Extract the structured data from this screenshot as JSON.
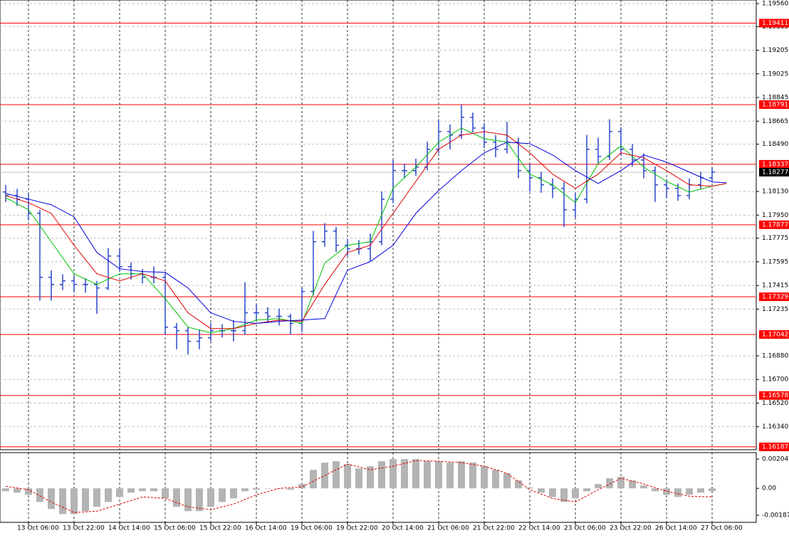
{
  "chart_data": [
    {
      "type": "ohlc",
      "categories": [
        null,
        null,
        "13 Oct 06:00",
        null,
        null,
        null,
        "13 Oct 22:00",
        null,
        null,
        null,
        "14 Oct 14:00",
        null,
        null,
        null,
        "15 Oct 06:00",
        null,
        null,
        null,
        "15 Oct 22:00",
        null,
        null,
        null,
        "16 Oct 14:00",
        null,
        null,
        null,
        "19 Oct 06:00",
        null,
        null,
        null,
        "19 Oct 22:00",
        null,
        null,
        null,
        "20 Oct 14:00",
        null,
        null,
        null,
        "21 Oct 06:00",
        null,
        null,
        null,
        "21 Oct 22:00",
        null,
        null,
        null,
        "22 Oct 14:00",
        null,
        null,
        null,
        "23 Oct 06:00",
        null,
        null,
        null,
        "23 Oct 22:00",
        null,
        null,
        null,
        "26 Oct 14:00",
        null,
        null,
        null,
        "27 Oct 06:00"
      ],
      "open": [
        1.18126,
        1.18099,
        1.18072,
        1.17964,
        1.17477,
        1.17423,
        1.1745,
        1.17423,
        1.17423,
        1.17396,
        1.17639,
        1.17558,
        1.17504,
        1.17477,
        1.17477,
        1.17098,
        1.17071,
        1.1699,
        1.17017,
        1.17071,
        1.17071,
        1.17071,
        1.17207,
        1.17207,
        1.1718,
        1.1718,
        1.17126,
        1.17369,
        1.17748,
        1.17829,
        1.17721,
        1.17694,
        1.17694,
        1.17748,
        1.18072,
        1.18289,
        1.18289,
        1.18316,
        1.18451,
        1.18586,
        1.18559,
        1.18694,
        1.18613,
        1.18505,
        1.18451,
        1.18505,
        1.18289,
        1.18235,
        1.18181,
        1.18154,
        1.17991,
        1.18072,
        1.18451,
        1.18397,
        1.18586,
        1.18451,
        1.1837,
        1.18289,
        1.18181,
        1.18154,
        1.18099,
        1.18181,
        1.18235
      ],
      "high": [
        1.1818,
        1.1815,
        1.1811,
        1.1799,
        1.1753,
        1.175,
        1.1749,
        1.1747,
        1.1745,
        1.177,
        1.1769,
        1.1759,
        1.1754,
        1.1756,
        1.1751,
        1.1713,
        1.171,
        1.1708,
        1.1713,
        1.1712,
        1.1715,
        1.1744,
        1.1727,
        1.1725,
        1.1724,
        1.172,
        1.174,
        1.1783,
        1.1789,
        1.1786,
        1.1777,
        1.1776,
        1.1781,
        1.1813,
        1.1837,
        1.1834,
        1.1838,
        1.1851,
        1.1868,
        1.1864,
        1.1879,
        1.1873,
        1.1865,
        1.1856,
        1.1866,
        1.1854,
        1.1834,
        1.1828,
        1.1823,
        1.182,
        1.1812,
        1.1856,
        1.1854,
        1.1868,
        1.1862,
        1.1849,
        1.1842,
        1.1832,
        1.1822,
        1.1819,
        1.1823,
        1.1828,
        1.1831
      ],
      "low": [
        1.1805,
        1.1802,
        1.1791,
        1.173,
        1.173,
        1.1738,
        1.1737,
        1.1736,
        1.172,
        1.1738,
        1.1752,
        1.1746,
        1.1743,
        1.1743,
        1.1704,
        1.1693,
        1.1689,
        1.1693,
        1.1699,
        1.1702,
        1.1699,
        1.1704,
        1.1715,
        1.1713,
        1.1711,
        1.1704,
        1.1706,
        1.1734,
        1.1771,
        1.1767,
        1.1764,
        1.1765,
        1.176,
        1.1772,
        1.1804,
        1.1823,
        1.1825,
        1.1829,
        1.1842,
        1.1845,
        1.1853,
        1.1858,
        1.1846,
        1.1839,
        1.1842,
        1.1823,
        1.1813,
        1.1812,
        1.1808,
        1.1786,
        1.1793,
        1.1804,
        1.1834,
        1.1837,
        1.184,
        1.1832,
        1.1823,
        1.1805,
        1.1808,
        1.1806,
        1.1807,
        1.1815,
        1.1821
      ],
      "close": [
        1.18099,
        1.18072,
        1.17964,
        1.17477,
        1.17423,
        1.1745,
        1.17423,
        1.17423,
        1.17396,
        1.17639,
        1.17558,
        1.17504,
        1.17477,
        1.17477,
        1.17098,
        1.17071,
        1.1699,
        1.17017,
        1.17071,
        1.17071,
        1.17071,
        1.17207,
        1.17207,
        1.1718,
        1.1718,
        1.17126,
        1.17369,
        1.17748,
        1.17829,
        1.17721,
        1.17694,
        1.17694,
        1.17748,
        1.18072,
        1.18289,
        1.18289,
        1.18316,
        1.18451,
        1.18586,
        1.18559,
        1.18694,
        1.18613,
        1.18505,
        1.18451,
        1.18505,
        1.18289,
        1.18235,
        1.18181,
        1.18154,
        1.17991,
        1.18072,
        1.18451,
        1.18397,
        1.18586,
        1.18451,
        1.1837,
        1.18289,
        1.18181,
        1.18154,
        1.18099,
        1.18181,
        1.18235,
        1.18277
      ],
      "color": "#2a48c8",
      "moving_averages": [
        {
          "color": "#00c000",
          "x": [
            0,
            2,
            4,
            6,
            8,
            10,
            12,
            14,
            16,
            18,
            20,
            22,
            24,
            26,
            28,
            30,
            32,
            34,
            36,
            38,
            40,
            42,
            44,
            46,
            48,
            50,
            52,
            54,
            56,
            58,
            60,
            62,
            63.25
          ],
          "values": [
            1.18083,
            1.17991,
            1.17748,
            1.17504,
            1.17423,
            1.17504,
            1.17504,
            1.17315,
            1.17098,
            1.17055,
            1.17087,
            1.17152,
            1.17163,
            1.17126,
            1.17585,
            1.17721,
            1.17748,
            1.18154,
            1.18316,
            1.18505,
            1.18613,
            1.18532,
            1.18505,
            1.18262,
            1.18181,
            1.18045,
            1.18343,
            1.18478,
            1.18316,
            1.18207,
            1.18126,
            1.1817,
            1.18191
          ]
        },
        {
          "color": "#e00000",
          "x": [
            0,
            2,
            4,
            6,
            8,
            10,
            12,
            14,
            16,
            18,
            20,
            22,
            24,
            26,
            28,
            30,
            32,
            34,
            36,
            38,
            40,
            42,
            44,
            46,
            48,
            50,
            52,
            54,
            56,
            58,
            60,
            62,
            63.25
          ],
          "values": [
            1.18099,
            1.18045,
            1.17964,
            1.17721,
            1.17504,
            1.1745,
            1.17504,
            1.1745,
            1.17207,
            1.17087,
            1.17087,
            1.17126,
            1.17152,
            1.17142,
            1.17423,
            1.17666,
            1.17721,
            1.17964,
            1.18207,
            1.18451,
            1.18559,
            1.18586,
            1.18559,
            1.18424,
            1.18262,
            1.18154,
            1.18262,
            1.18424,
            1.18386,
            1.18289,
            1.18181,
            1.1817,
            1.18191
          ]
        },
        {
          "color": "#0000e0",
          "x": [
            0,
            2,
            4,
            6,
            8,
            10,
            12,
            14,
            16,
            18,
            20,
            22,
            24,
            26,
            28,
            30,
            32,
            34,
            36,
            38,
            40,
            42,
            44,
            46,
            48,
            50,
            52,
            54,
            56,
            58,
            60,
            62,
            63.25
          ],
          "values": [
            1.18115,
            1.18072,
            1.18029,
            1.17937,
            1.17666,
            1.17542,
            1.17521,
            1.17515,
            1.17396,
            1.17207,
            1.17142,
            1.17126,
            1.17142,
            1.17152,
            1.17163,
            1.17531,
            1.17596,
            1.17721,
            1.17964,
            1.18137,
            1.18289,
            1.18424,
            1.18505,
            1.18494,
            1.18408,
            1.18289,
            1.18191,
            1.18289,
            1.18408,
            1.18354,
            1.18278,
            1.18202,
            1.18197
          ]
        }
      ],
      "levels": {
        "color": "#ff0000",
        "values": [
          1.19411,
          1.18791,
          1.18337,
          1.17877,
          1.17329,
          1.17042,
          1.16578,
          1.16187
        ]
      },
      "current_price": 1.18277,
      "ylim": [
        1.16165,
        1.19587
      ],
      "yticks": [
        {
          "value": 1.1956,
          "label": "1.19560"
        },
        1.19385,
        1.19205,
        1.19025,
        1.18845,
        1.18665,
        {
          "value": 1.1849,
          "label": "1.18490"
        },
        {
          "value": 1.1813,
          "label": "1.18130"
        },
        {
          "value": 1.1795,
          "label": "1.17950"
        },
        1.17775,
        1.17595,
        1.17415,
        1.17235,
        {
          "value": 1.1688,
          "label": "1.16880"
        },
        {
          "value": 1.167,
          "label": "1.16700"
        },
        {
          "value": 1.1652,
          "label": "1.16520"
        },
        {
          "value": 1.1634,
          "label": "1.16340"
        }
      ],
      "grid": true
    },
    {
      "type": "oscillator",
      "values": [
        -0.0002,
        -0.0003,
        -0.00045,
        -0.00095,
        -0.00144,
        -0.00179,
        -0.00179,
        -0.00159,
        -0.00129,
        -0.00095,
        -0.0006,
        -0.0003,
        -0.0002,
        -0.0002,
        -0.0007,
        -0.00129,
        -0.00159,
        -0.00159,
        -0.00129,
        -0.00095,
        -0.0007,
        -0.0002,
        -0.0001,
        0,
        0,
        -0.0001,
        0.0003,
        0.00129,
        0.00179,
        0.00189,
        0.00169,
        0.00139,
        0.00154,
        0.00189,
        0.00204,
        0.00204,
        0.00204,
        0.00189,
        0.00189,
        0.00179,
        0.00189,
        0.00179,
        0.00154,
        0.00129,
        0.00105,
        0.00055,
        5e-05,
        -0.0003,
        -0.0006,
        -0.00095,
        -0.0007,
        -0.0002,
        0.0003,
        0.0007,
        0.0008,
        0.00055,
        0.0002,
        -0.0002,
        -0.00045,
        -0.0006,
        -0.00045,
        -0.0003,
        -0.0002
      ],
      "color": "#b4b4b4",
      "signal": {
        "color": "#e00000",
        "x": [
          0,
          2,
          4,
          6,
          8,
          10,
          12,
          14,
          16,
          18,
          20,
          22,
          24,
          26,
          28,
          30,
          32,
          34,
          36,
          38,
          40,
          42,
          44,
          46,
          48,
          50,
          52,
          54,
          56,
          58,
          60,
          62
        ],
        "values": [
          0.00015,
          -0.0001,
          -0.00095,
          -0.00169,
          -0.00159,
          -0.0011,
          -0.0006,
          -0.0007,
          -0.00129,
          -0.00149,
          -0.0011,
          -0.00045,
          0,
          0.0001,
          0.0009,
          0.00169,
          0.00129,
          0.00154,
          0.00194,
          0.00189,
          0.00179,
          0.00154,
          0.00105,
          -0.0001,
          -0.0007,
          -0.00095,
          -0.0001,
          0.0007,
          0.0003,
          -0.0002,
          -0.00055,
          -0.0006
        ]
      },
      "ylim": [
        -0.00237,
        0.00249
      ],
      "yticks": [
        0.00204,
        {
          "value": 0,
          "label": "0.00"
        },
        -0.001871
      ],
      "grid": true
    }
  ]
}
